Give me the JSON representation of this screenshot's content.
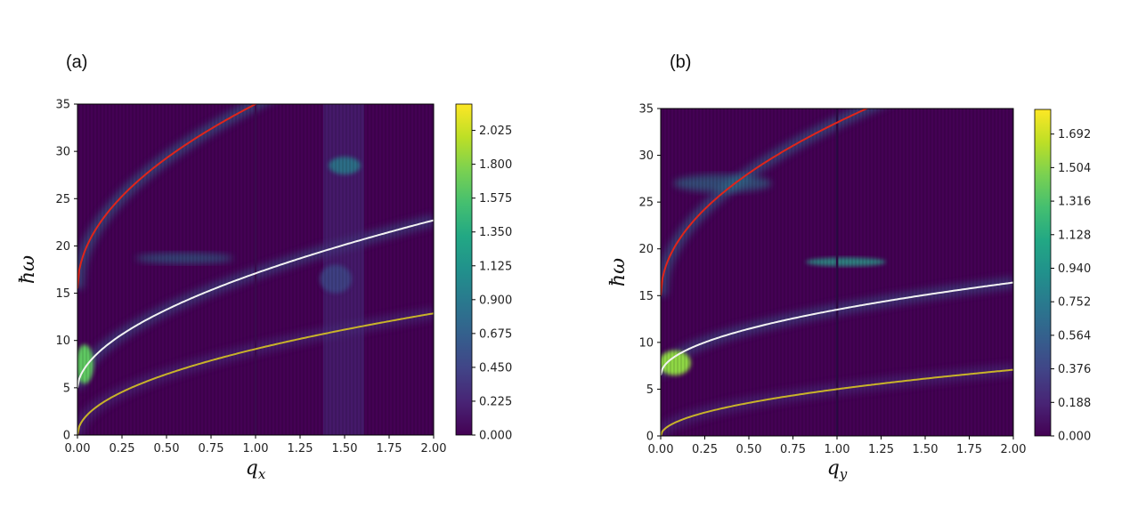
{
  "chart_data": [
    {
      "type": "heatmap",
      "panel_label": "(a)",
      "xlabel": "q_x",
      "ylabel": "ħω",
      "xlim": [
        0,
        2
      ],
      "ylim": [
        0,
        35
      ],
      "xticks": [
        "0.00",
        "0.25",
        "0.50",
        "0.75",
        "1.00",
        "1.25",
        "1.50",
        "1.75",
        "2.00"
      ],
      "yticks": [
        "0",
        "5",
        "10",
        "15",
        "20",
        "25",
        "30",
        "35"
      ],
      "colorbar": {
        "min": 0,
        "max": 2.2,
        "ticks": [
          "0.000",
          "0.225",
          "0.450",
          "0.675",
          "0.900",
          "1.125",
          "1.350",
          "1.575",
          "1.800",
          "2.025"
        ]
      },
      "series": [
        {
          "name": "red curve",
          "color": "#e0241b",
          "x0": 0,
          "y0": 15.5,
          "coef": 19.5,
          "power": 0.5
        },
        {
          "name": "white curve",
          "color": "#f2f2f2",
          "x0": 0,
          "y0": 5.0,
          "coef": 12.1,
          "power": 0.55
        },
        {
          "name": "yellow curve",
          "color": "#c8b32a",
          "x0": 0,
          "y0": 0,
          "coef": 9.1,
          "power": 0.5
        }
      ]
    },
    {
      "type": "heatmap",
      "panel_label": "(b)",
      "xlabel": "q_y",
      "ylabel": "ħω",
      "xlim": [
        0,
        2
      ],
      "ylim": [
        0,
        35
      ],
      "xticks": [
        "0.00",
        "0.25",
        "0.50",
        "0.75",
        "1.00",
        "1.25",
        "1.50",
        "1.75",
        "2.00"
      ],
      "yticks": [
        "0",
        "5",
        "10",
        "15",
        "20",
        "25",
        "30",
        "35"
      ],
      "colorbar": {
        "min": 0,
        "max": 1.83,
        "ticks": [
          "0.000",
          "0.188",
          "0.376",
          "0.564",
          "0.752",
          "0.940",
          "1.128",
          "1.316",
          "1.504",
          "1.692"
        ]
      },
      "series": [
        {
          "name": "red curve",
          "color": "#e0241b",
          "x0": 0,
          "y0": 15.0,
          "coef": 18.5,
          "power": 0.5
        },
        {
          "name": "white curve",
          "color": "#f2f2f2",
          "x0": 0,
          "y0": 6.5,
          "coef": 7.0,
          "power": 0.5
        },
        {
          "name": "yellow curve",
          "color": "#c8b32a",
          "x0": 0,
          "y0": 0,
          "coef": 5.0,
          "power": 0.5
        }
      ]
    }
  ]
}
